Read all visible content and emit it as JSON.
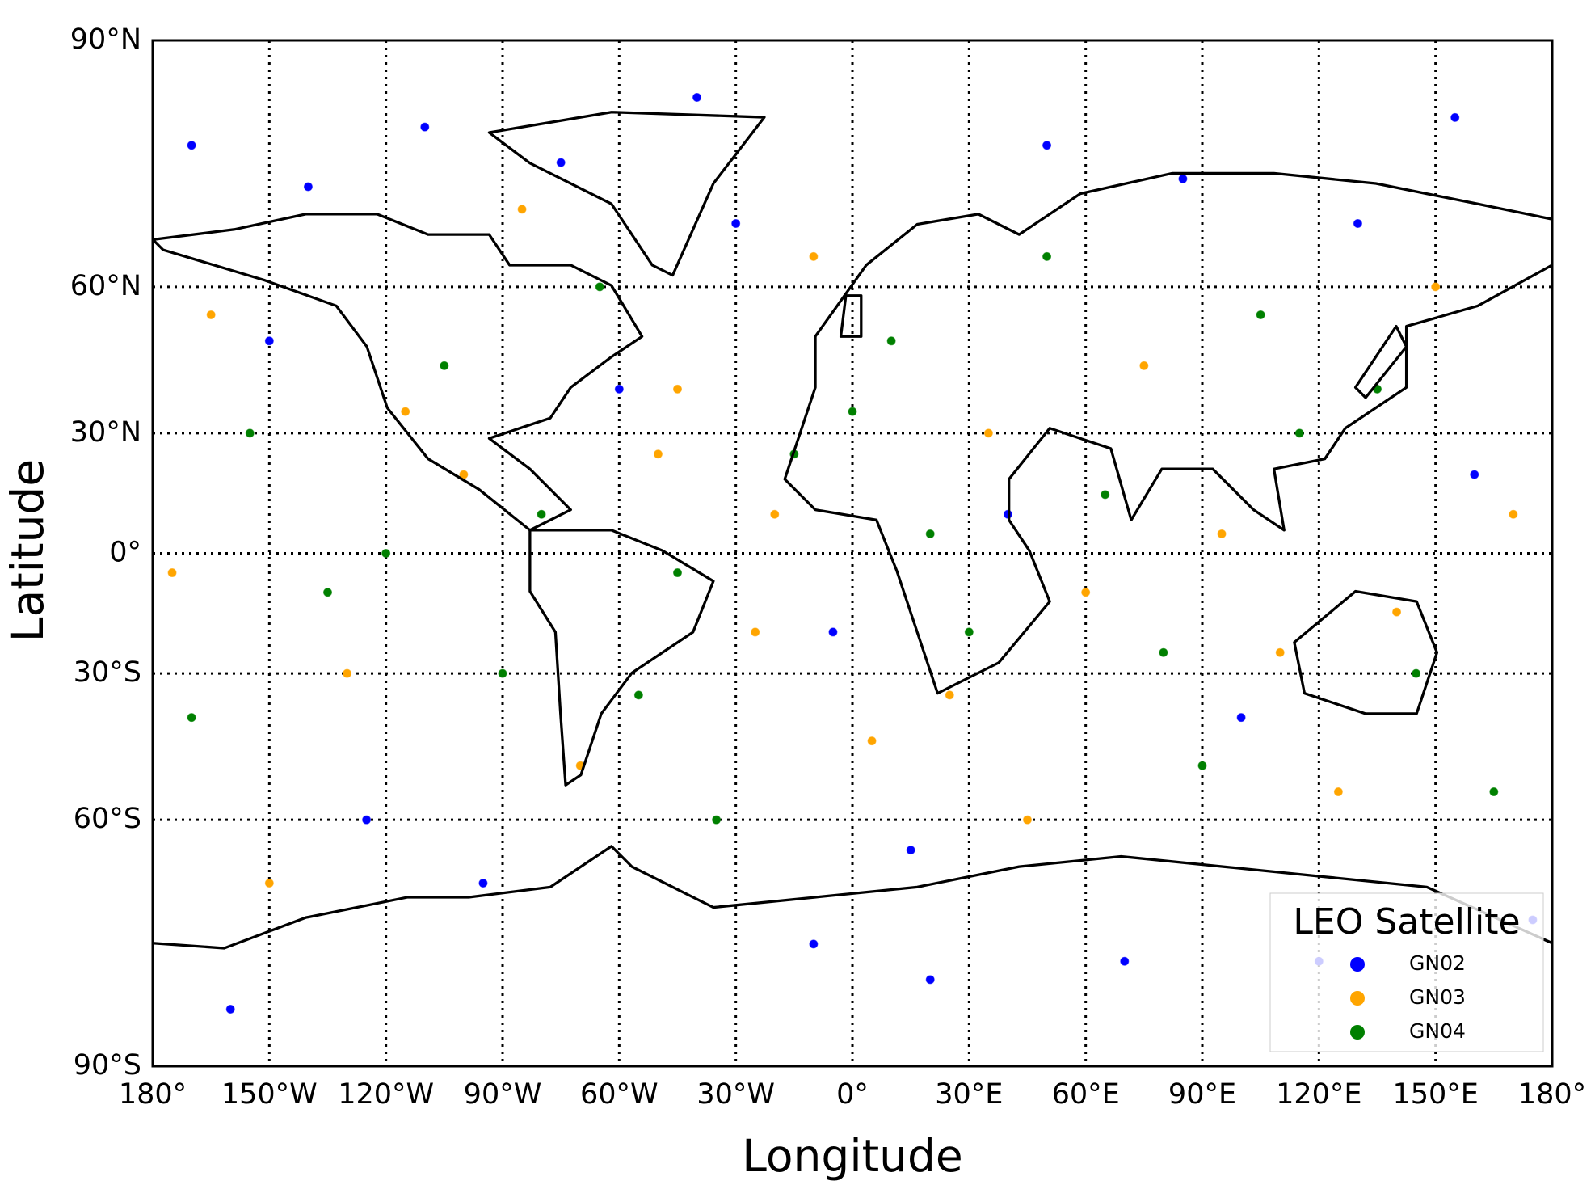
{
  "chart_data": {
    "type": "scatter",
    "projection": "miller",
    "x_label": "Longitude",
    "y_label": "Latitude",
    "xlim": [
      -180,
      180
    ],
    "ylim": [
      -90,
      90
    ],
    "xticks": [
      {
        "value": -180,
        "label": "180°"
      },
      {
        "value": -150,
        "label": "150°W"
      },
      {
        "value": -120,
        "label": "120°W"
      },
      {
        "value": -90,
        "label": "90°W"
      },
      {
        "value": -60,
        "label": "60°W"
      },
      {
        "value": -30,
        "label": "30°W"
      },
      {
        "value": 0,
        "label": "0°"
      },
      {
        "value": 30,
        "label": "30°E"
      },
      {
        "value": 60,
        "label": "60°E"
      },
      {
        "value": 90,
        "label": "90°E"
      },
      {
        "value": 120,
        "label": "120°E"
      },
      {
        "value": 150,
        "label": "150°E"
      },
      {
        "value": 180,
        "label": "180°"
      }
    ],
    "yticks": [
      {
        "value": -90,
        "label": "90°S"
      },
      {
        "value": -60,
        "label": "60°S"
      },
      {
        "value": -30,
        "label": "30°S"
      },
      {
        "value": 0,
        "label": "0°"
      },
      {
        "value": 30,
        "label": "30°N"
      },
      {
        "value": 60,
        "label": "60°N"
      },
      {
        "value": 90,
        "label": "90°N"
      }
    ],
    "grid": true,
    "legend_title": "LEO Satellite",
    "legend": "lower right",
    "series": [
      {
        "name": "GN02",
        "color": "#0000ff",
        "x": [
          -170,
          -140,
          -110,
          -75,
          -40,
          -10,
          20,
          50,
          85,
          120,
          155,
          175,
          -160,
          -95,
          -30,
          15,
          70,
          130,
          -125,
          -60,
          40,
          100,
          160,
          -5,
          -150
        ],
        "y": [
          80,
          75,
          82,
          78,
          85,
          -78,
          -82,
          80,
          76,
          -80,
          83,
          -75,
          -85,
          -70,
          70,
          -65,
          -80,
          70,
          -60,
          40,
          10,
          -40,
          20,
          -20,
          50
        ]
      },
      {
        "name": "GN03",
        "color": "#ffa500",
        "x": [
          -165,
          -130,
          -100,
          -70,
          -45,
          -20,
          5,
          35,
          60,
          95,
          125,
          150,
          -150,
          -85,
          -25,
          25,
          75,
          140,
          -115,
          -50,
          45,
          110,
          170,
          -10,
          -175
        ],
        "y": [
          55,
          -30,
          20,
          -50,
          40,
          10,
          -45,
          30,
          -10,
          5,
          -55,
          60,
          -70,
          72,
          -20,
          -35,
          45,
          -15,
          35,
          25,
          -60,
          -25,
          10,
          65,
          -5
        ]
      },
      {
        "name": "GN04",
        "color": "#008000",
        "x": [
          -155,
          -120,
          -90,
          -65,
          -35,
          -15,
          10,
          30,
          65,
          90,
          115,
          145,
          -170,
          -105,
          -45,
          20,
          80,
          135,
          -135,
          -55,
          50,
          105,
          165,
          0,
          -80
        ],
        "y": [
          30,
          0,
          -30,
          60,
          -60,
          25,
          50,
          -20,
          15,
          -50,
          30,
          -30,
          -40,
          45,
          -5,
          5,
          -25,
          40,
          -10,
          -35,
          65,
          55,
          -55,
          35,
          10
        ]
      }
    ]
  }
}
